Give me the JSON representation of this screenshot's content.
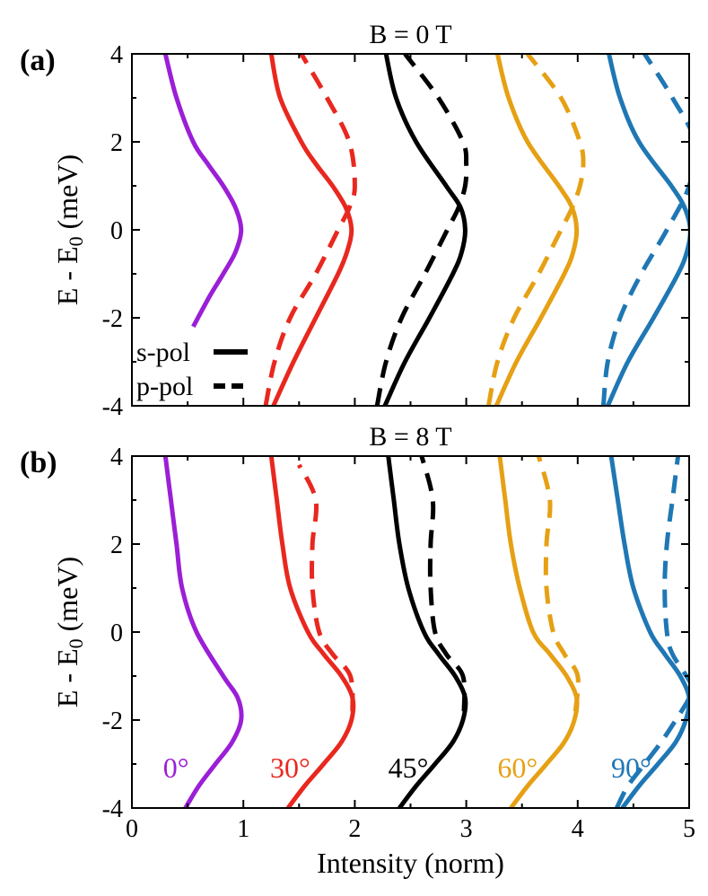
{
  "chart_data": [
    {
      "type": "line",
      "panel_label": "(a)",
      "title": "B = 0 T",
      "xlabel": "",
      "ylabel_main": "E - E",
      "ylabel_sub": "0",
      "ylabel_unit": " (meV)",
      "xlim": [
        0,
        5
      ],
      "ylim": [
        -4,
        4
      ],
      "yticks": [
        -4,
        -2,
        0,
        2,
        4
      ],
      "ytick_labels": [
        "-4",
        "-2",
        "0",
        "2",
        "4"
      ],
      "legend": [
        {
          "label": "s-pol",
          "style": "solid"
        },
        {
          "label": "p-pol",
          "style": "dashed"
        }
      ],
      "series": [
        {
          "name": "0° s-pol",
          "angle": "0°",
          "polarization": "s",
          "color": "#9b1fd6",
          "style": "solid",
          "y": [
            -2.2,
            -1.5,
            -1.0,
            -0.5,
            0.0,
            0.5,
            1.0,
            1.5,
            2.0,
            3.0,
            4.0
          ],
          "x": [
            0.55,
            0.7,
            0.82,
            0.93,
            0.98,
            0.93,
            0.82,
            0.68,
            0.55,
            0.4,
            0.3
          ]
        },
        {
          "name": "30° s-pol",
          "angle": "30°",
          "polarization": "s",
          "color": "#e8281f",
          "style": "solid",
          "y": [
            -4,
            -3,
            -2,
            -1,
            -0.5,
            0,
            0.5,
            1.0,
            1.5,
            2,
            3,
            4
          ],
          "x": [
            1.27,
            1.45,
            1.65,
            1.85,
            1.93,
            1.97,
            1.92,
            1.8,
            1.65,
            1.52,
            1.33,
            1.25
          ]
        },
        {
          "name": "30° p-pol",
          "angle": "30°",
          "polarization": "p",
          "color": "#e8281f",
          "style": "dashed",
          "y": [
            -4,
            -3,
            -2,
            -1,
            0,
            0.5,
            1.0,
            2.0,
            3.0,
            4.0
          ],
          "x": [
            1.2,
            1.28,
            1.42,
            1.65,
            1.85,
            1.95,
            2.0,
            1.95,
            1.75,
            1.52
          ]
        },
        {
          "name": "45° s-pol",
          "angle": "45°",
          "polarization": "s",
          "color": "#000000",
          "style": "solid",
          "y": [
            -4,
            -3,
            -2,
            -1,
            -0.5,
            0,
            0.5,
            1.0,
            2.0,
            3.0,
            4.0
          ],
          "x": [
            2.27,
            2.45,
            2.67,
            2.88,
            2.96,
            2.99,
            2.95,
            2.82,
            2.55,
            2.37,
            2.28
          ]
        },
        {
          "name": "45° p-pol",
          "angle": "45°",
          "polarization": "p",
          "color": "#000000",
          "style": "dashed",
          "y": [
            -4,
            -3,
            -2,
            -1,
            0,
            0.5,
            1.0,
            1.5,
            2.0,
            3.0,
            4.0
          ],
          "x": [
            2.2,
            2.28,
            2.42,
            2.63,
            2.83,
            2.93,
            2.99,
            3.0,
            2.97,
            2.75,
            2.45
          ]
        },
        {
          "name": "60° s-pol",
          "angle": "60°",
          "polarization": "s",
          "color": "#e6a014",
          "style": "solid",
          "y": [
            -4,
            -3,
            -2,
            -1,
            -0.5,
            0,
            0.5,
            1.0,
            2.0,
            3.0,
            4.0
          ],
          "x": [
            3.27,
            3.45,
            3.67,
            3.88,
            3.96,
            3.99,
            3.95,
            3.83,
            3.55,
            3.38,
            3.28
          ]
        },
        {
          "name": "60° p-pol",
          "angle": "60°",
          "polarization": "p",
          "color": "#e6a014",
          "style": "dashed",
          "y": [
            -4,
            -3,
            -2,
            -1,
            0,
            0.5,
            1.0,
            1.5,
            2.0,
            3.0,
            4.0
          ],
          "x": [
            3.2,
            3.28,
            3.43,
            3.65,
            3.85,
            3.95,
            4.02,
            4.05,
            4.02,
            3.85,
            3.55
          ]
        },
        {
          "name": "90° s-pol",
          "angle": "90°",
          "polarization": "s",
          "color": "#1f77b4",
          "style": "solid",
          "y": [
            -4,
            -3,
            -2,
            -1,
            -0.5,
            0,
            0.5,
            1.0,
            2.0,
            3.0,
            4.0
          ],
          "x": [
            4.27,
            4.45,
            4.68,
            4.9,
            4.98,
            5.01,
            4.96,
            4.84,
            4.55,
            4.38,
            4.28
          ]
        },
        {
          "name": "90° p-pol",
          "angle": "90°",
          "polarization": "p",
          "color": "#1f77b4",
          "style": "dashed",
          "y": [
            -4,
            -3,
            -2,
            -1,
            0,
            1.0,
            2.0,
            3.0,
            4.0
          ],
          "x": [
            4.23,
            4.27,
            4.38,
            4.57,
            4.8,
            5.0,
            5.05,
            4.85,
            4.6
          ]
        }
      ]
    },
    {
      "type": "line",
      "panel_label": "(b)",
      "title": "B = 8 T",
      "xlabel": "Intensity (norm)",
      "ylabel_main": "E - E",
      "ylabel_sub": "0",
      "ylabel_unit": " (meV)",
      "xlim": [
        0,
        5
      ],
      "ylim": [
        -4,
        4
      ],
      "xticks": [
        0,
        1,
        2,
        3,
        4,
        5
      ],
      "xtick_labels": [
        "0",
        "1",
        "2",
        "3",
        "4",
        "5"
      ],
      "yticks": [
        -4,
        -2,
        0,
        2,
        4
      ],
      "ytick_labels": [
        "-4",
        "-2",
        "0",
        "2",
        "4"
      ],
      "annotations": [
        {
          "text": "0°",
          "x": 0.28,
          "y": -3.1,
          "color": "#9b1fd6"
        },
        {
          "text": "30°",
          "x": 1.24,
          "y": -3.1,
          "color": "#e8281f"
        },
        {
          "text": "45°",
          "x": 2.3,
          "y": -3.1,
          "color": "#000000"
        },
        {
          "text": "60°",
          "x": 3.28,
          "y": -3.1,
          "color": "#e6a014"
        },
        {
          "text": "90°",
          "x": 4.3,
          "y": -3.1,
          "color": "#1f77b4"
        }
      ],
      "series": [
        {
          "name": "0° s-pol",
          "angle": "0°",
          "polarization": "s",
          "color": "#9b1fd6",
          "style": "solid",
          "y": [
            -4,
            -3.5,
            -3,
            -2.5,
            -2,
            -1.5,
            -1,
            0,
            1,
            2,
            3,
            4
          ],
          "x": [
            0.48,
            0.6,
            0.75,
            0.9,
            0.98,
            0.95,
            0.82,
            0.58,
            0.45,
            0.4,
            0.35,
            0.3
          ]
        },
        {
          "name": "30° s-pol",
          "angle": "30°",
          "polarization": "s",
          "color": "#e8281f",
          "style": "solid",
          "y": [
            -4,
            -3.5,
            -3,
            -2.5,
            -2,
            -1.5,
            -1,
            -0.5,
            0,
            1,
            2,
            3,
            4
          ],
          "x": [
            1.4,
            1.55,
            1.72,
            1.88,
            1.97,
            1.98,
            1.88,
            1.72,
            1.58,
            1.42,
            1.35,
            1.3,
            1.25
          ]
        },
        {
          "name": "30° p-pol",
          "angle": "30°",
          "polarization": "p",
          "color": "#e8281f",
          "style": "dashed",
          "y": [
            -1.8,
            -1.0,
            -0.5,
            0,
            1,
            2,
            3,
            3.8
          ],
          "x": [
            1.98,
            1.96,
            1.8,
            1.68,
            1.62,
            1.62,
            1.65,
            1.5
          ]
        },
        {
          "name": "45° s-pol",
          "angle": "45°",
          "polarization": "s",
          "color": "#000000",
          "style": "solid",
          "y": [
            -4,
            -3.5,
            -3,
            -2.5,
            -2,
            -1.5,
            -1,
            -0.5,
            0,
            1,
            2,
            3,
            4
          ],
          "x": [
            2.4,
            2.55,
            2.72,
            2.88,
            2.97,
            2.99,
            2.9,
            2.75,
            2.62,
            2.48,
            2.4,
            2.35,
            2.3
          ]
        },
        {
          "name": "45° p-pol",
          "angle": "45°",
          "polarization": "p",
          "color": "#000000",
          "style": "dashed",
          "y": [
            -1.8,
            -1.0,
            -0.5,
            0,
            1,
            2,
            3,
            4
          ],
          "x": [
            2.98,
            2.97,
            2.82,
            2.72,
            2.68,
            2.68,
            2.7,
            2.6
          ]
        },
        {
          "name": "60° s-pol",
          "angle": "60°",
          "polarization": "s",
          "color": "#e6a014",
          "style": "solid",
          "y": [
            -4,
            -3.5,
            -3,
            -2.5,
            -2,
            -1.5,
            -1,
            -0.5,
            0,
            1,
            2,
            3,
            4
          ],
          "x": [
            3.4,
            3.55,
            3.72,
            3.88,
            3.97,
            3.99,
            3.9,
            3.75,
            3.6,
            3.48,
            3.4,
            3.35,
            3.3
          ]
        },
        {
          "name": "60° p-pol",
          "angle": "60°",
          "polarization": "p",
          "color": "#e6a014",
          "style": "dashed",
          "y": [
            -1.8,
            -1.0,
            -0.5,
            0,
            1,
            2,
            3,
            4
          ],
          "x": [
            3.98,
            4.0,
            3.88,
            3.78,
            3.72,
            3.72,
            3.75,
            3.65
          ]
        },
        {
          "name": "90° s-pol",
          "angle": "90°",
          "polarization": "s",
          "color": "#1f77b4",
          "style": "solid",
          "y": [
            -4,
            -3.5,
            -3,
            -2.5,
            -2,
            -1.5,
            -1,
            -0.5,
            0,
            1,
            2,
            3,
            4
          ],
          "x": [
            4.4,
            4.55,
            4.72,
            4.88,
            4.97,
            5.0,
            4.92,
            4.78,
            4.65,
            4.5,
            4.42,
            4.36,
            4.3
          ]
        },
        {
          "name": "90° p-pol",
          "angle": "90°",
          "polarization": "p",
          "color": "#1f77b4",
          "style": "dashed",
          "y": [
            -4,
            -3.5,
            -3,
            -2.5,
            -2,
            -1.5,
            -1.2,
            -0.5,
            0,
            1,
            2,
            3,
            4
          ],
          "x": [
            4.35,
            4.45,
            4.6,
            4.75,
            4.88,
            5.0,
            5.02,
            4.85,
            4.8,
            4.78,
            4.8,
            4.85,
            4.9
          ]
        }
      ]
    }
  ]
}
